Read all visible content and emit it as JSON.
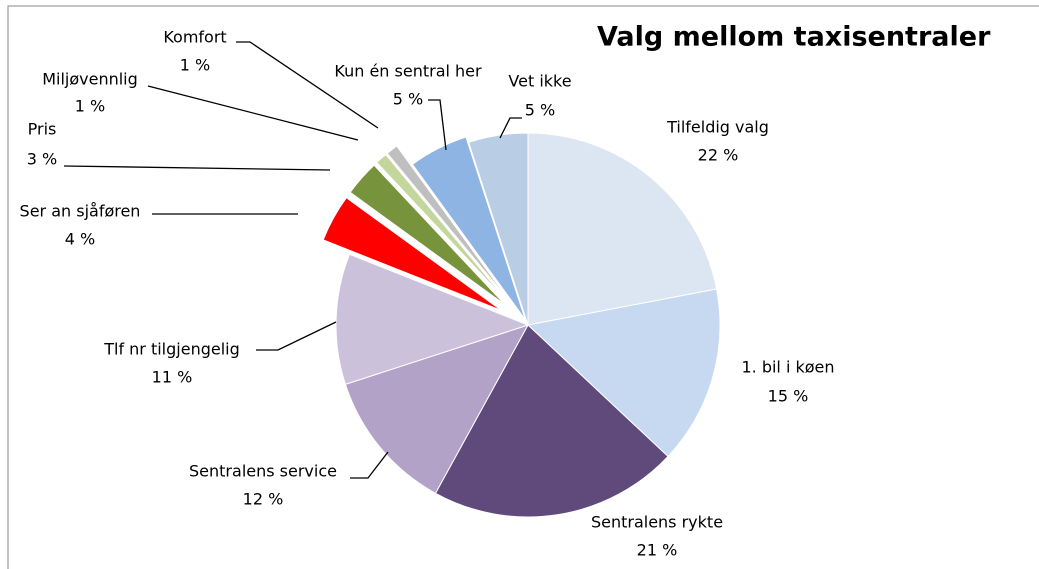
{
  "chart_data": {
    "type": "pie",
    "title": "Valg mellom taxisentraler",
    "categories": [
      "Tilfeldig valg",
      "1. bil i køen",
      "Sentralens rykte",
      "Sentralens service",
      "Tlf nr tilgjengelig",
      "Ser an sjåføren",
      "Pris",
      "Miljøvennlig",
      "Komfort",
      "Kun én sentral her",
      "Vet ikke"
    ],
    "values": [
      22,
      15,
      21,
      12,
      11,
      4,
      3,
      1,
      1,
      5,
      5
    ],
    "value_labels": [
      "22 %",
      "15 %",
      "21 %",
      "12 %",
      "11 %",
      "4 %",
      "3 %",
      "1 %",
      "1 %",
      "5 %",
      "5 %"
    ],
    "colors": [
      "#dce6f2",
      "#c6d9f1",
      "#604a7b",
      "#b3a2c7",
      "#ccc1da",
      "#ff0000",
      "#77933c",
      "#c3d69b",
      "#bfbfbf",
      "#8eb4e3",
      "#b9cde5"
    ]
  }
}
